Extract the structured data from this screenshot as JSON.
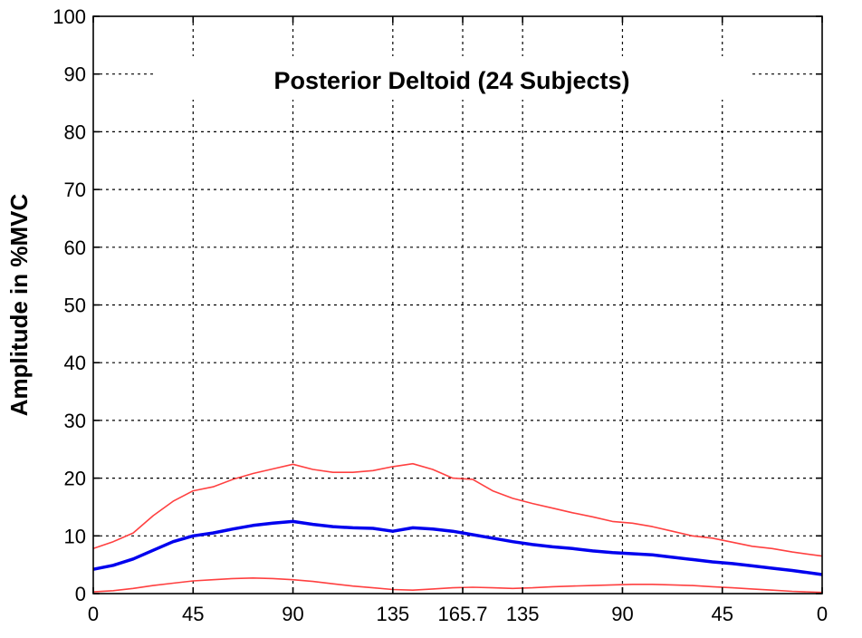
{
  "chart_data": {
    "type": "line",
    "title": "Posterior Deltoid (24 Subjects)",
    "xlabel": "",
    "ylabel": "Amplitude in %MVC",
    "ylim": [
      0,
      100
    ],
    "y_ticks": [
      0,
      10,
      20,
      30,
      40,
      50,
      60,
      70,
      80,
      90,
      100
    ],
    "x_tick_labels": [
      "0",
      "45",
      "90",
      "135",
      "165.7",
      "135",
      "90",
      "45",
      "0"
    ],
    "x_tick_positions": [
      0,
      1,
      2,
      3,
      3.7,
      4.3,
      5.3,
      6.3,
      7.3
    ],
    "xlim": [
      0,
      7.3
    ],
    "grid": true,
    "colors": {
      "mean": "#0000ee",
      "bounds": "#ff4040",
      "grid": "#000000"
    },
    "series": [
      {
        "role": "mean",
        "x": [
          0,
          0.2,
          0.4,
          0.6,
          0.8,
          1.0,
          1.2,
          1.4,
          1.6,
          1.8,
          2.0,
          2.2,
          2.4,
          2.6,
          2.8,
          3.0,
          3.2,
          3.4,
          3.6,
          3.8,
          4.0,
          4.2,
          4.4,
          4.6,
          4.8,
          5.0,
          5.2,
          5.4,
          5.6,
          5.8,
          6.0,
          6.2,
          6.4,
          6.6,
          6.8,
          7.0,
          7.3
        ],
        "y": [
          4.2,
          4.9,
          6.0,
          7.5,
          9.0,
          10.0,
          10.5,
          11.2,
          11.8,
          12.2,
          12.5,
          12.0,
          11.6,
          11.4,
          11.3,
          10.8,
          11.4,
          11.2,
          10.8,
          10.2,
          9.6,
          9.0,
          8.5,
          8.1,
          7.8,
          7.4,
          7.1,
          6.9,
          6.7,
          6.3,
          5.9,
          5.5,
          5.2,
          4.8,
          4.4,
          4.0,
          3.3
        ]
      },
      {
        "role": "upper-bound",
        "x": [
          0,
          0.2,
          0.4,
          0.6,
          0.8,
          1.0,
          1.2,
          1.4,
          1.6,
          1.8,
          2.0,
          2.2,
          2.4,
          2.6,
          2.8,
          3.0,
          3.2,
          3.4,
          3.6,
          3.8,
          4.0,
          4.2,
          4.4,
          4.6,
          4.8,
          5.0,
          5.2,
          5.4,
          5.6,
          5.8,
          6.0,
          6.2,
          6.4,
          6.6,
          6.8,
          7.0,
          7.3
        ],
        "y": [
          7.8,
          9.0,
          10.5,
          13.5,
          16.0,
          17.8,
          18.5,
          19.8,
          20.8,
          21.6,
          22.4,
          21.5,
          21.0,
          21.0,
          21.3,
          22.0,
          22.5,
          21.5,
          20.0,
          19.8,
          17.8,
          16.5,
          15.6,
          14.8,
          14.0,
          13.3,
          12.5,
          12.2,
          11.6,
          10.8,
          10.0,
          9.6,
          8.9,
          8.2,
          7.8,
          7.2,
          6.5
        ]
      },
      {
        "role": "lower-bound",
        "x": [
          0,
          0.2,
          0.4,
          0.6,
          0.8,
          1.0,
          1.2,
          1.4,
          1.6,
          1.8,
          2.0,
          2.2,
          2.4,
          2.6,
          2.8,
          3.0,
          3.2,
          3.4,
          3.6,
          3.8,
          4.0,
          4.2,
          4.4,
          4.6,
          4.8,
          5.0,
          5.2,
          5.4,
          5.6,
          5.8,
          6.0,
          6.2,
          6.4,
          6.6,
          6.8,
          7.0,
          7.3
        ],
        "y": [
          0.3,
          0.5,
          0.9,
          1.4,
          1.8,
          2.2,
          2.4,
          2.6,
          2.7,
          2.6,
          2.4,
          2.1,
          1.7,
          1.3,
          1.0,
          0.7,
          0.6,
          0.8,
          1.0,
          1.1,
          1.0,
          0.9,
          1.0,
          1.2,
          1.3,
          1.4,
          1.5,
          1.6,
          1.6,
          1.5,
          1.4,
          1.2,
          1.0,
          0.8,
          0.6,
          0.4,
          0.2
        ]
      }
    ]
  }
}
